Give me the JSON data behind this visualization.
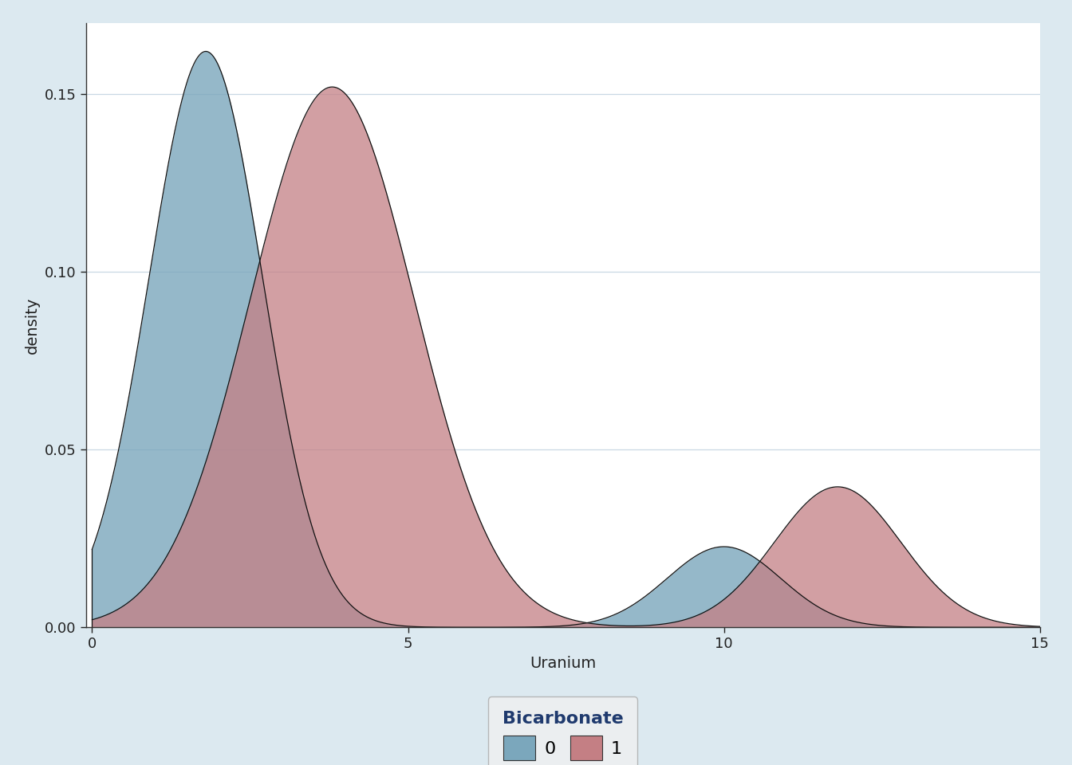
{
  "title": "",
  "xlabel": "Uranium",
  "ylabel": "density",
  "xlim": [
    -0.1,
    15
  ],
  "ylim": [
    0,
    0.17
  ],
  "yticks": [
    0.0,
    0.05,
    0.1,
    0.15
  ],
  "xticks": [
    0,
    5,
    10,
    15
  ],
  "color_0": "#7ba7bc",
  "color_1": "#c47f84",
  "alpha_0": 0.8,
  "alpha_1": 0.75,
  "edge_color": "#111111",
  "background_plot": "#ffffff",
  "background_fig": "#dce9f0",
  "legend_title": "Bicarbonate",
  "legend_labels": [
    "0",
    "1"
  ],
  "grid_color": "#c8d8e4",
  "legend_title_color": "#1f3a6e",
  "tick_label_color": "#222222"
}
